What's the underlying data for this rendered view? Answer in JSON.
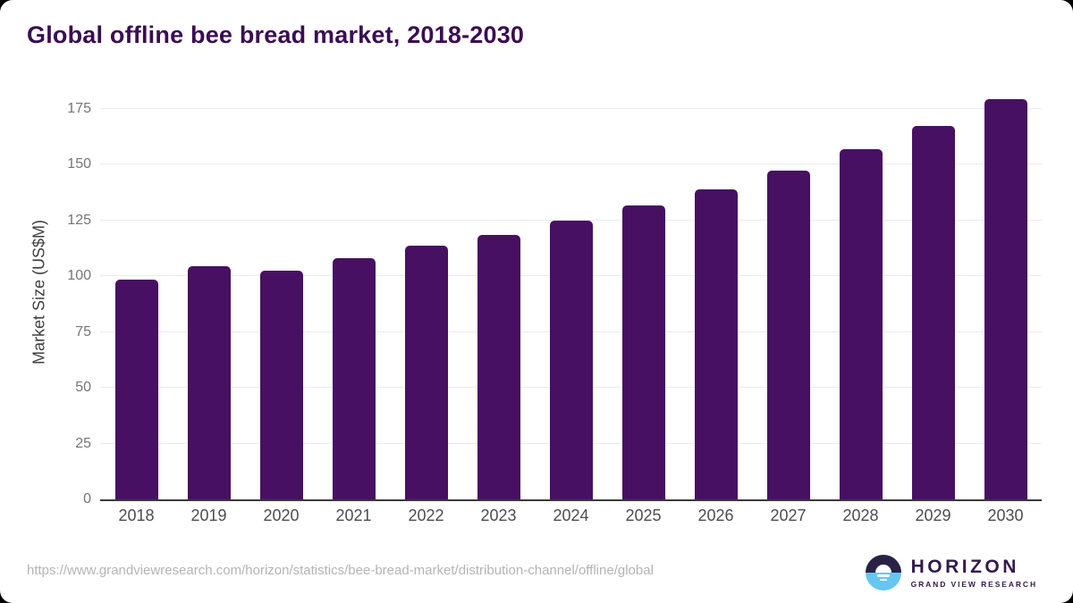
{
  "title": "Global offline bee bread market, 2018-2030",
  "source_url": "https://www.grandviewresearch.com/horizon/statistics/bee-bread-market/distribution-channel/offline/global",
  "logo": {
    "name": "HORIZON",
    "subtitle": "GRAND VIEW RESEARCH"
  },
  "colors": {
    "bar": "#471063",
    "title": "#3a0d53",
    "gridline": "#ebebeb",
    "axis_line": "#3a3a3a",
    "tick_label": "#757575",
    "x_label": "#4d4d4d",
    "url_text": "#b4b4b4",
    "logo_purple": "#321b4d",
    "logo_dark": "#2a2147",
    "logo_blue": "#66c6f0"
  },
  "chart_data": {
    "type": "bar",
    "title": "Global offline bee bread market, 2018-2030",
    "categories": [
      "2018",
      "2019",
      "2020",
      "2021",
      "2022",
      "2023",
      "2024",
      "2025",
      "2026",
      "2027",
      "2028",
      "2029",
      "2030"
    ],
    "values": [
      98.4,
      104.4,
      102.6,
      107.9,
      113.5,
      118.5,
      125.0,
      131.7,
      139.0,
      147.4,
      156.9,
      167.2,
      179.1
    ],
    "xlabel": "",
    "ylabel": "Market Size (US$M)",
    "ylim": [
      0,
      185.6
    ],
    "yticks": [
      0,
      25,
      50,
      75,
      100,
      125,
      150,
      175
    ],
    "grid": "horizontal",
    "legend": "none",
    "bar_color": "#471063"
  }
}
